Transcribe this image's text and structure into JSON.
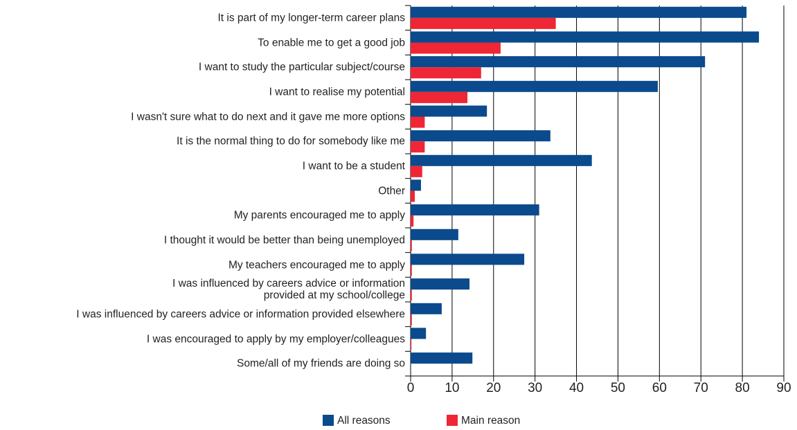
{
  "chart_data": {
    "type": "hbar",
    "categories": [
      "It is part of my longer-term career plans",
      "To enable me to get a good job",
      "I want to study the particular subject/course",
      "I want to realise my potential",
      "I wasn't sure what to do next and it gave me more options",
      "It is the normal thing to do for somebody like me",
      "I want to be a student",
      "Other",
      "My parents encouraged me to apply",
      "I thought it would be better than being unemployed",
      "My teachers encouraged me to apply",
      "I was influenced by careers advice or information\nprovided at my school/college",
      "I was influenced by careers advice or information provided elsewhere",
      "I was encouraged to apply by my employer/colleagues",
      "Some/all of my friends are doing so"
    ],
    "series": [
      {
        "name": "All reasons",
        "color": "#0b4a8c",
        "values": [
          81,
          84,
          71,
          59.6,
          18.4,
          33.7,
          43.7,
          2.5,
          31,
          11.5,
          27.4,
          14.2,
          7.5,
          3.7,
          14.9
        ]
      },
      {
        "name": "Main reason",
        "color": "#ee2636",
        "values": [
          35,
          21.7,
          17,
          13.7,
          3.4,
          3.4,
          2.8,
          1,
          0.7,
          0.3,
          0.3,
          0.3,
          0.3,
          0.2,
          0
        ]
      }
    ],
    "xlim": [
      0,
      90
    ],
    "xticks": [
      0,
      10,
      20,
      30,
      40,
      50,
      60,
      70,
      80,
      90
    ],
    "grid": true,
    "legend": "bottom"
  }
}
